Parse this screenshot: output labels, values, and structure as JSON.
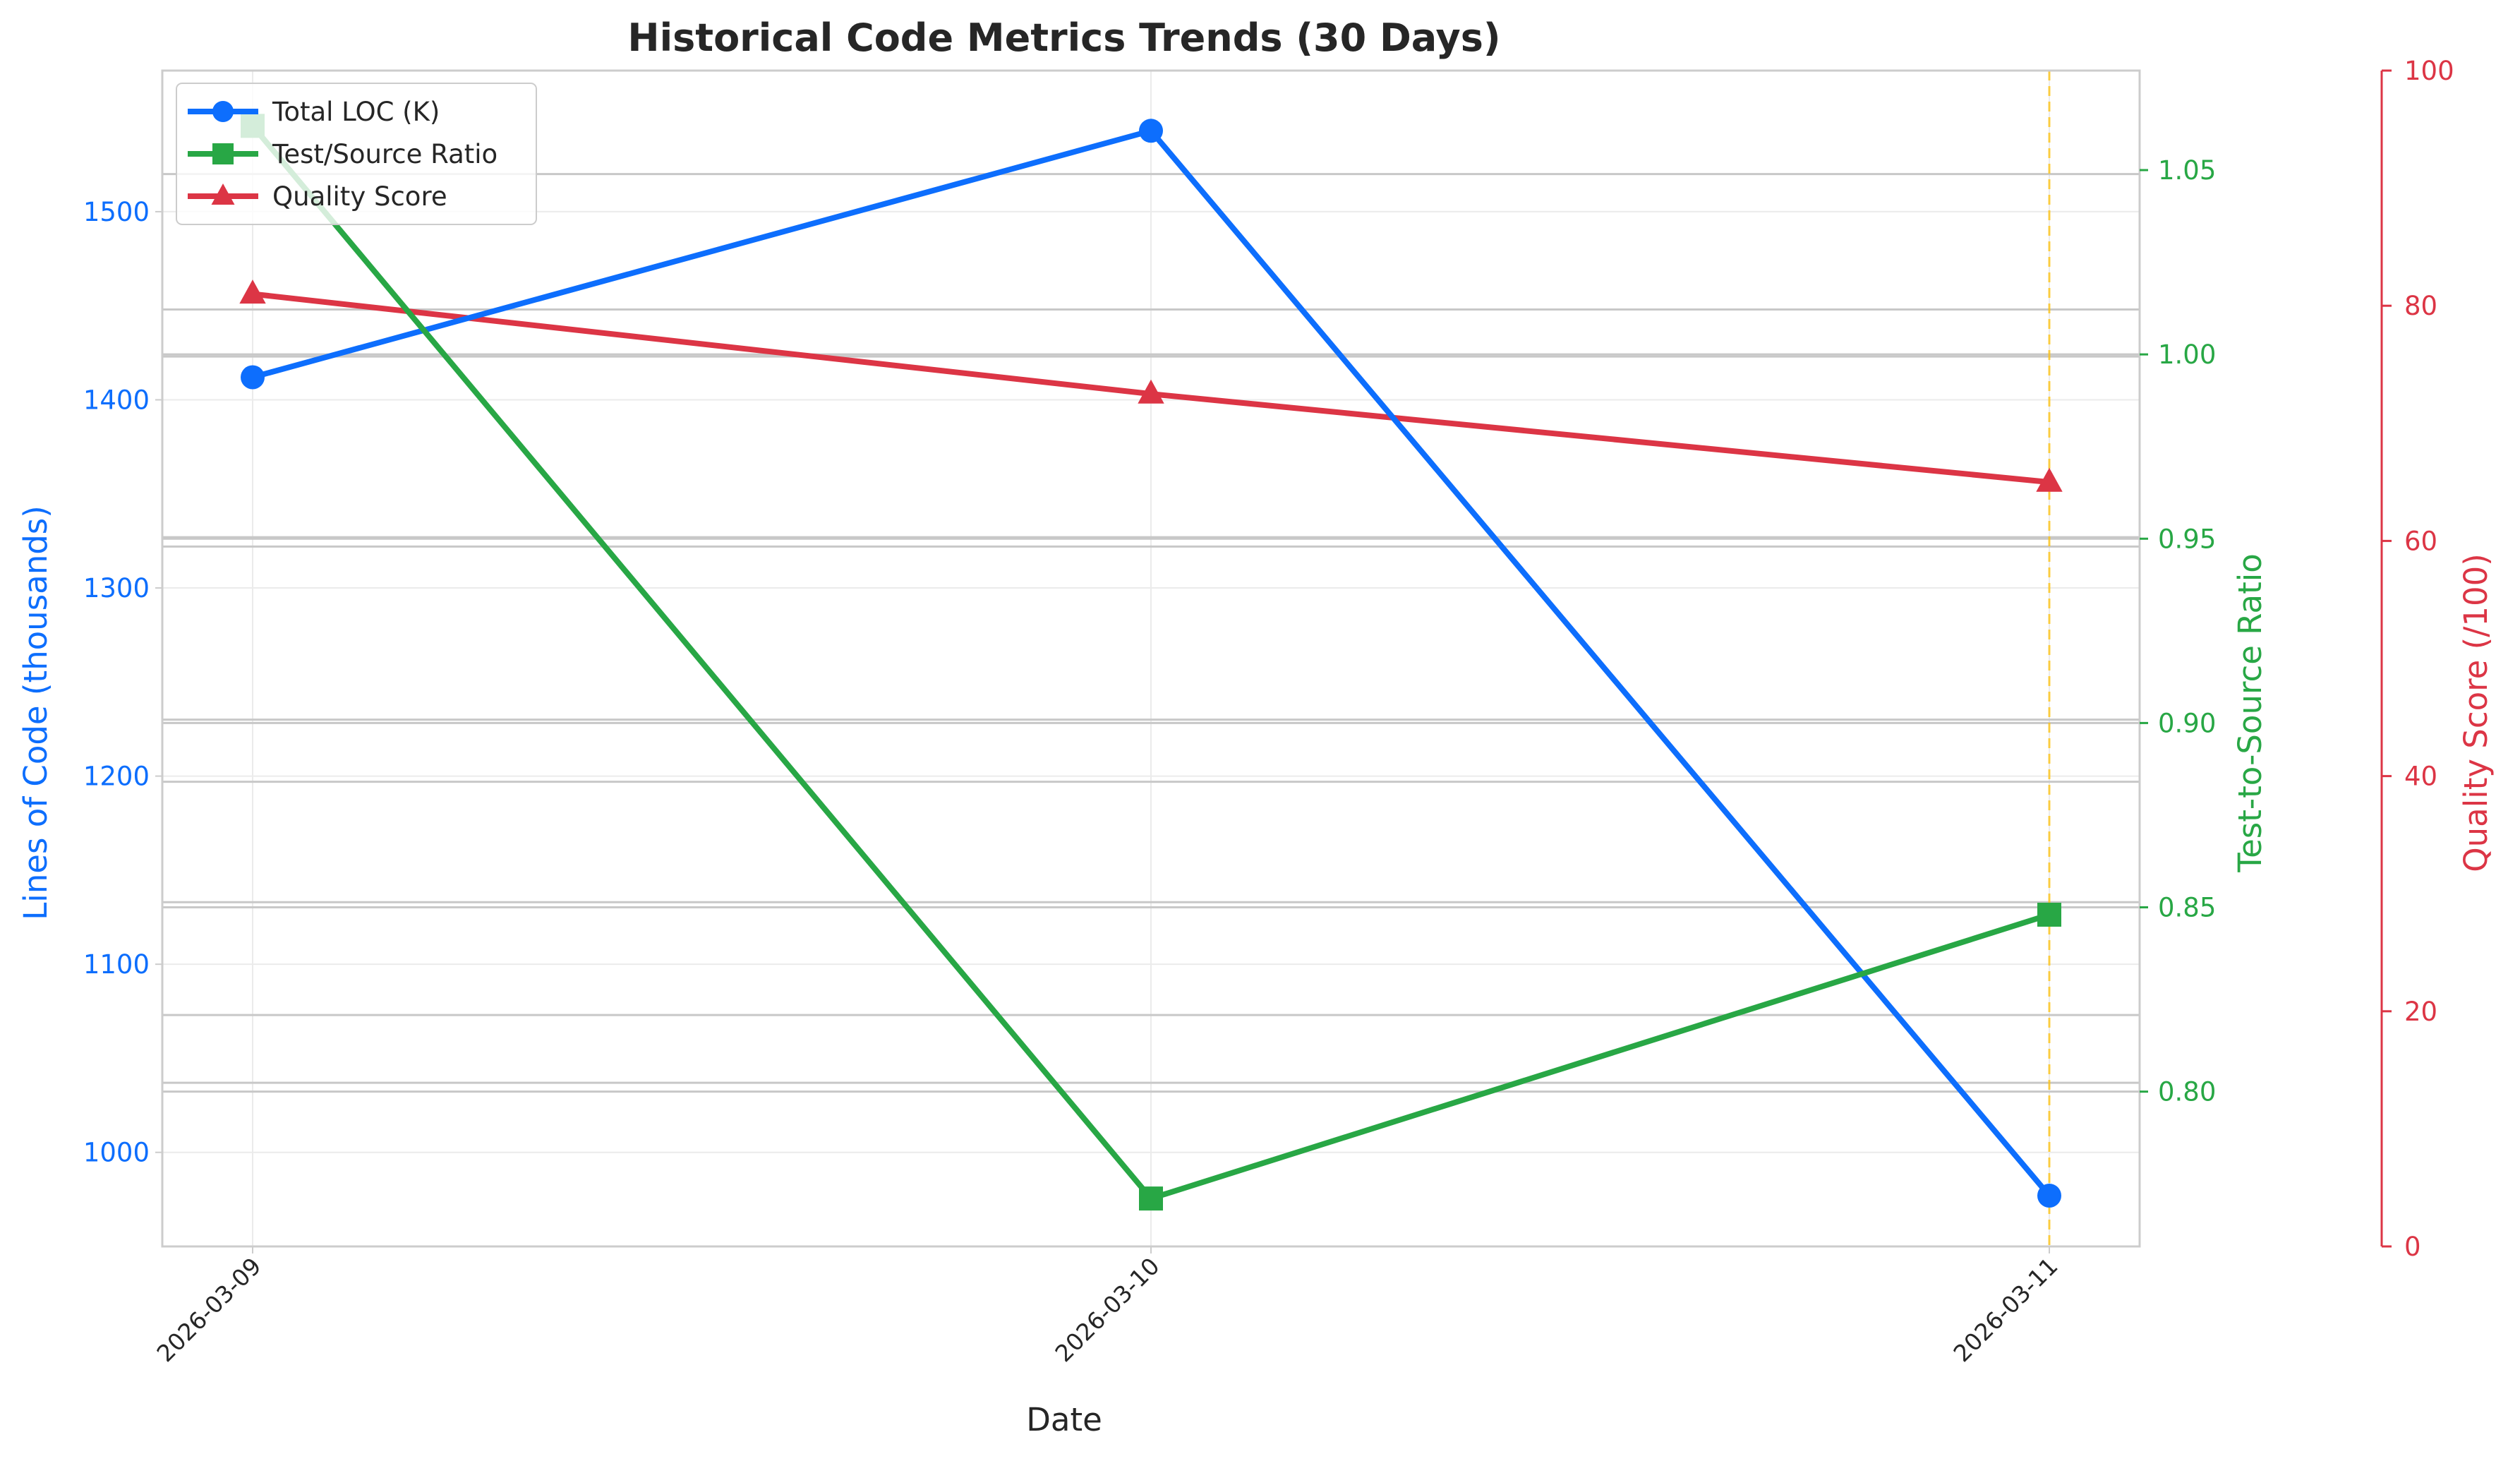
{
  "colors": {
    "loc": "#0d6efd",
    "ratio": "#28a745",
    "quality": "#dc3545",
    "marker_line": "#ffc107",
    "grid": "#ebebeb",
    "axes": "#cccccc",
    "ref_lines": "#c8c8c8",
    "text": "#262626"
  },
  "chart_data": {
    "type": "line",
    "title": "Historical Code Metrics Trends (30 Days)",
    "xlabel": "Date",
    "categories": [
      "2026-03-09",
      "2026-03-10",
      "2026-03-11"
    ],
    "axes": {
      "left": {
        "label": "Lines of Code (thousands)",
        "ylim": [
          950,
          1575
        ],
        "ticks": [
          1000,
          1100,
          1200,
          1300,
          1400,
          1500
        ]
      },
      "right": {
        "label": "Test-to-Source Ratio",
        "ylim": [
          0.758,
          1.077
        ],
        "ticks": [
          "0.80",
          "0.85",
          "0.90",
          "0.95",
          "1.00",
          "1.05"
        ]
      },
      "right2": {
        "label": "Quality Score (/100)",
        "ylim": [
          0,
          100
        ],
        "ticks": [
          0,
          20,
          40,
          60,
          80,
          100
        ]
      }
    },
    "series": [
      {
        "name": "Total LOC (K)",
        "axis": "left",
        "marker": "circle",
        "values": [
          1412,
          1543,
          977
        ]
      },
      {
        "name": "Test/Source Ratio",
        "axis": "right",
        "marker": "square",
        "values": [
          1.062,
          0.771,
          0.848
        ]
      },
      {
        "name": "Quality Score",
        "axis": "right2",
        "marker": "triangle",
        "values": [
          81,
          72.5,
          65
        ]
      }
    ],
    "reference_lines_ratio": [
      1.0,
      0.95,
      0.9,
      0.85,
      0.8
    ],
    "reference_lines_loc": [
      1520,
      1448,
      1423,
      1327,
      1322,
      1230,
      1197,
      1133,
      1073,
      1037
    ],
    "highlight_category": "2026-03-11",
    "grid": true,
    "legend": "upper-left"
  }
}
